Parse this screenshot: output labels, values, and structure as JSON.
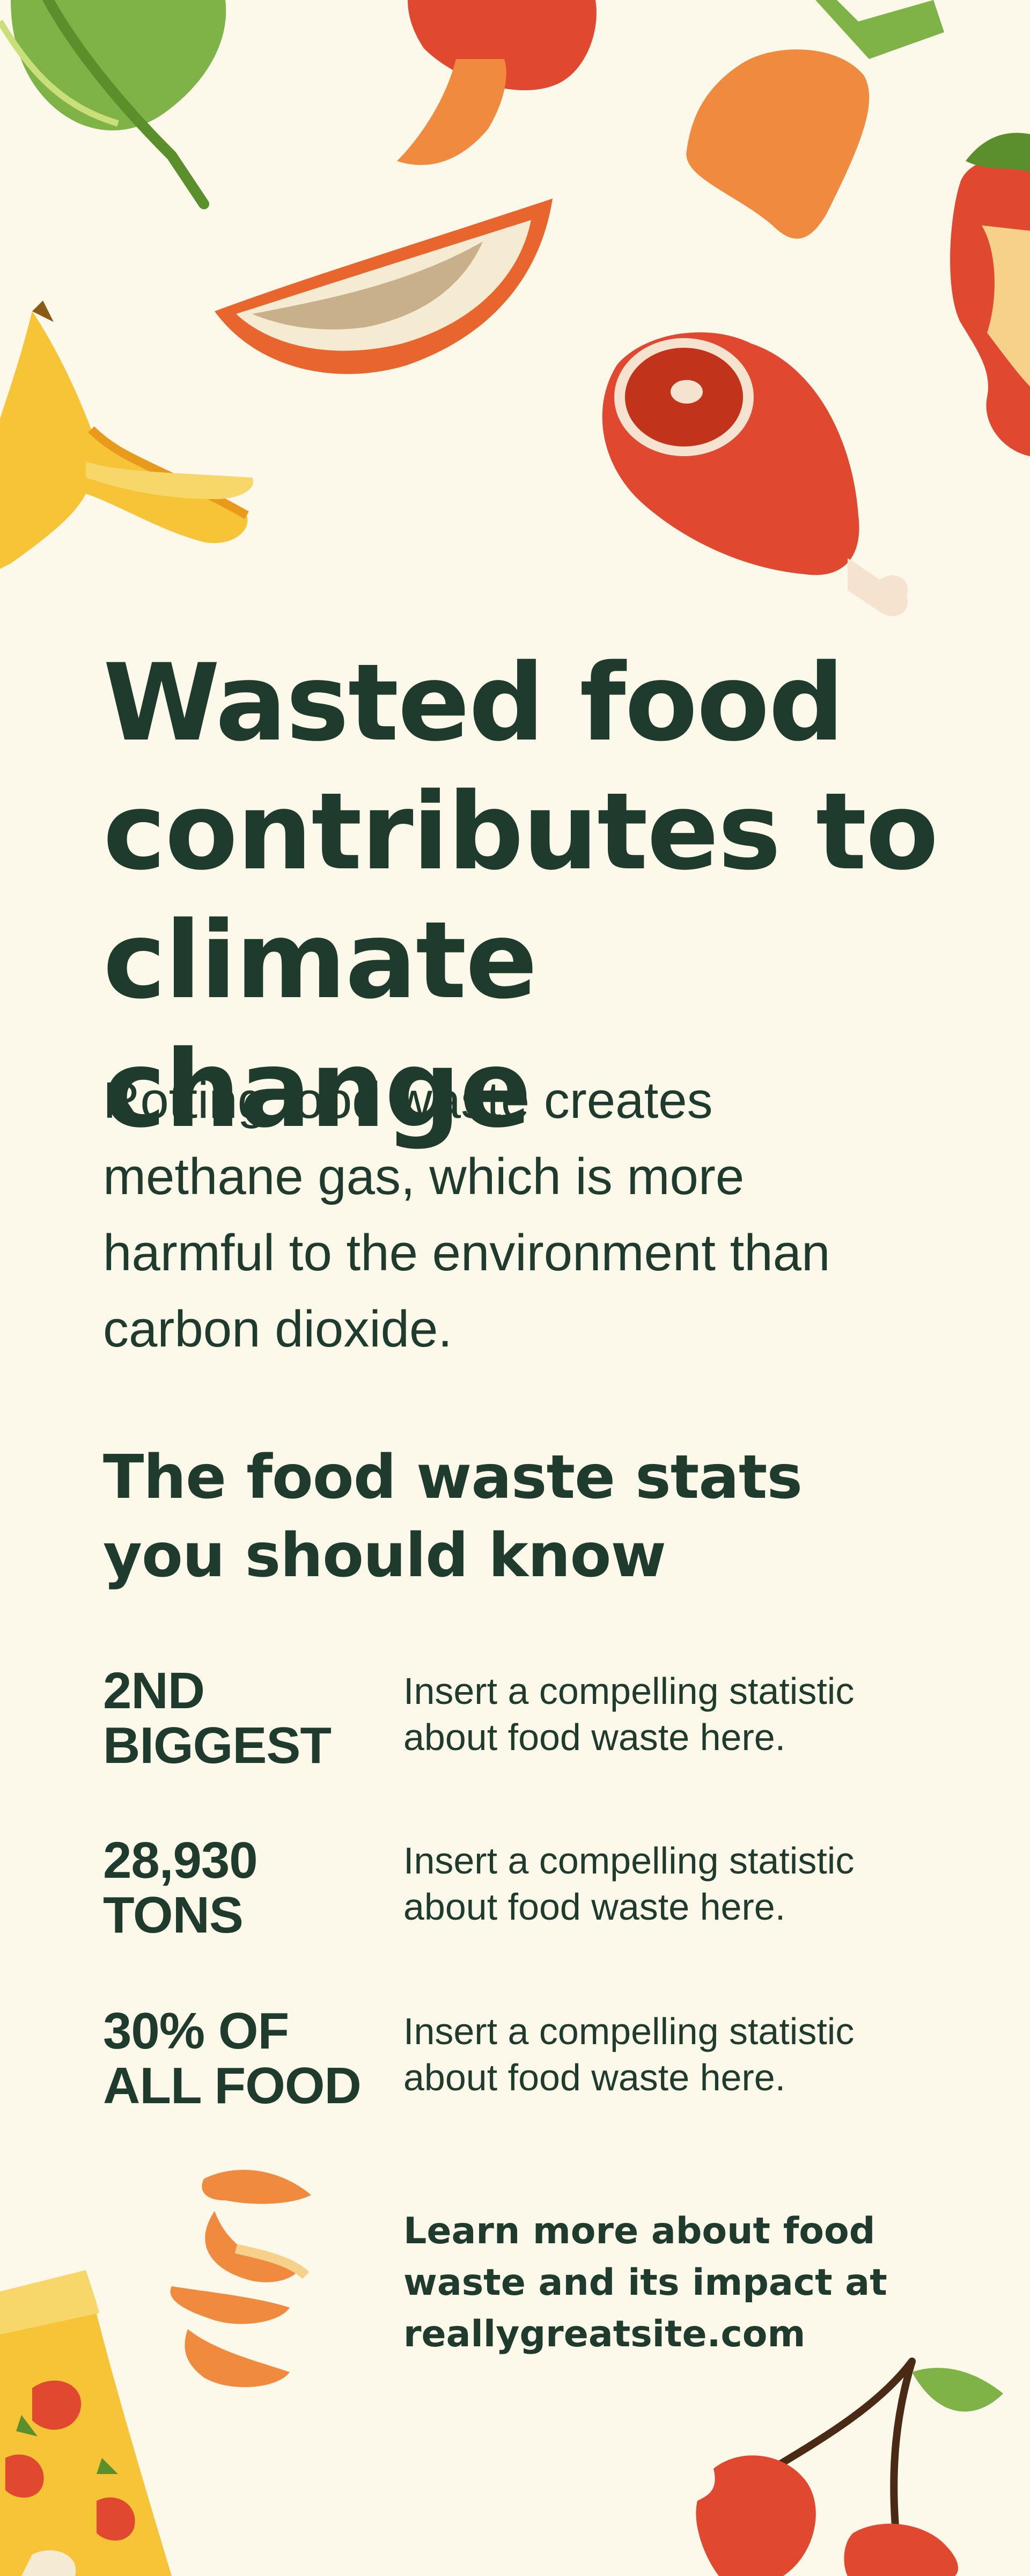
{
  "heading": {
    "title": "Wasted food contributes to climate change",
    "intro": "Rotting food waste creates methane gas, which is more harmful to the environment than carbon dioxide."
  },
  "stats": {
    "heading": "The food waste stats you should know",
    "items": [
      {
        "value": "2ND BIGGEST",
        "description": "Insert a compelling statistic about food waste here."
      },
      {
        "value": "28,930 TONS",
        "description": "Insert a compelling statistic about food waste here."
      },
      {
        "value": "30% OF ALL FOOD",
        "description": "Insert a compelling statistic about food waste here."
      }
    ]
  },
  "footer": {
    "cta": "Learn more about food waste and its impact at reallygreatsite.com"
  },
  "colors": {
    "background": "#fdf9ea",
    "text": "#1f3b2d",
    "orange": "#f08a3e",
    "red": "#e0482f",
    "yellow": "#f6c436",
    "green": "#7fb347"
  },
  "illustrations": [
    "lettuce-leaf-icon",
    "mushroom-icon",
    "carrot-icon",
    "apple-core-icon",
    "coconut-slice-icon",
    "banana-peel-icon",
    "ham-leg-icon",
    "orange-peel-icon",
    "pizza-slice-icon",
    "cherries-icon"
  ]
}
